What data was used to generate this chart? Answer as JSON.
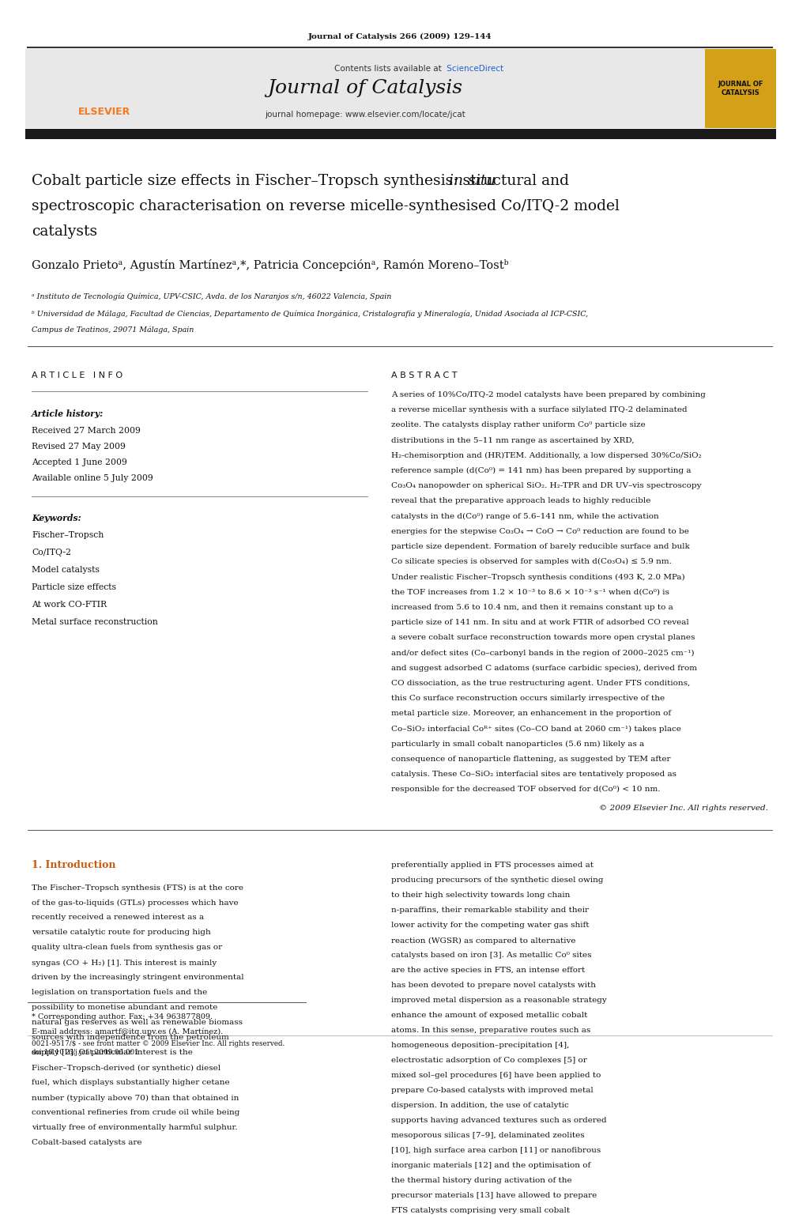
{
  "page_width": 9.92,
  "page_height": 13.23,
  "bg_color": "#ffffff",
  "journal_citation": "Journal of Catalysis 266 (2009) 129–144",
  "contents_text": "Contents lists available at",
  "sciencedirect_text": "ScienceDirect",
  "journal_name": "Journal of Catalysis",
  "homepage_text": "journal homepage: www.elsevier.com/locate/jcat",
  "journal_box_text": "JOURNAL OF\nCATALYSIS",
  "journal_box_color": "#d4a017",
  "header_bg_color": "#e8e8e8",
  "thick_bar_color": "#1a1a1a",
  "elsevier_color": "#f47920",
  "title_line1": "Cobalt particle size effects in Fischer–Tropsch synthesis: structural and in situ",
  "title_line2": "spectroscopic characterisation on reverse micelle-synthesised Co/ITQ-2 model",
  "title_line3": "catalysts",
  "authors": "Gonzalo Prietoᵃ, Agustín Martínezᵃ,*, Patricia Concepciónᵃ, Ramón Moreno–Tostᵇ",
  "affil_a": "ᵃ Instituto de Tecnología Química, UPV-CSIC, Avda. de los Naranjos s/n, 46022 Valencia, Spain",
  "affil_b": "ᵇ Universidad de Málaga, Facultad de Ciencias, Departamento de Química Inorgánica, Cristalografía y Mineralogía, Unidad Asociada al ICP-CSIC,",
  "affil_b2": "Campus de Teatinos, 29071 Málaga, Spain",
  "article_info_header": "ARTICLE INFO",
  "abstract_header": "ABSTRACT",
  "article_history_label": "Article history:",
  "received": "Received 27 March 2009",
  "revised": "Revised 27 May 2009",
  "accepted": "Accepted 1 June 2009",
  "available": "Available online 5 July 2009",
  "keywords_label": "Keywords:",
  "keywords": [
    "Fischer–Tropsch",
    "Co/ITQ-2",
    "Model catalysts",
    "Particle size effects",
    "At work CO-FTIR",
    "Metal surface reconstruction"
  ],
  "abstract_text": "A series of 10%Co/ITQ-2 model catalysts have been prepared by combining a reverse micellar synthesis with a surface silylated ITQ-2 delaminated zeolite. The catalysts display rather uniform Co⁰ particle size distributions in the 5–11 nm range as ascertained by XRD, H₂-chemisorption and (HR)TEM. Additionally, a low dispersed 30%Co/SiO₂ reference sample (d(Co⁰) = 141 nm) has been prepared by supporting a Co₃O₄ nanopowder on spherical SiO₂. H₂-TPR and DR UV–vis spectroscopy reveal that the preparative approach leads to highly reducible catalysts in the d(Co⁰) range of 5.6–141 nm, while the activation energies for the stepwise Co₃O₄ → CoO → Co⁰ reduction are found to be particle size dependent. Formation of barely reducible surface and bulk Co silicate species is observed for samples with d(Co₃O₄) ≤ 5.9 nm. Under realistic Fischer–Tropsch synthesis conditions (493 K, 2.0 MPa) the TOF increases from 1.2 × 10⁻³ to 8.6 × 10⁻³ s⁻¹ when d(Co⁰) is increased from 5.6 to 10.4 nm, and then it remains constant up to a particle size of 141 nm. In situ and at work FTIR of adsorbed CO reveal a severe cobalt surface reconstruction towards more open crystal planes and/or defect sites (Co–carbonyl bands in the region of 2000–2025 cm⁻¹) and suggest adsorbed C adatoms (surface carbidic species), derived from CO dissociation, as the true restructuring agent. Under FTS conditions, this Co surface reconstruction occurs similarly irrespective of the metal particle size. Moreover, an enhancement in the proportion of Co–SiO₂ interfacial Coᴿ⁺ sites (Co–CO band at 2060 cm⁻¹) takes place particularly in small cobalt nanoparticles (5.6 nm) likely as a consequence of nanoparticle flattening, as suggested by TEM after catalysis. These Co–SiO₂ interfacial sites are tentatively proposed as responsible for the decreased TOF observed for d(Co⁰) < 10 nm.",
  "copyright": "© 2009 Elsevier Inc. All rights reserved.",
  "intro_header": "1. Introduction",
  "intro_text1": "The Fischer–Tropsch synthesis (FTS) is at the core of the gas-to-liquids (GTLs) processes which have recently received a renewed interest as a versatile catalytic route for producing high quality ultra-clean fuels from synthesis gas or syngas (CO + H₂) [1]. This interest is mainly driven by the increasingly stringent environmental legislation on transportation fuels and the possibility to monetise abundant and remote natural gas reserves as well as renewable biomass sources with independence from the petroleum supply [2]. Of particular interest is the Fischer–Tropsch-derived (or synthetic) diesel fuel, which displays substantially higher cetane number (typically above 70) than that obtained in conventional refineries from crude oil while being virtually free of environmentally harmful sulphur. Cobalt-based catalysts are",
  "intro_text2": "preferentially applied in FTS processes aimed at producing precursors of the synthetic diesel owing to their high selectivity towards long chain n-paraffins, their remarkable stability and their lower activity for the competing water gas shift reaction (WGSR) as compared to alternative catalysts based on iron [3]. As metallic Co⁰ sites are the active species in FTS, an intense effort has been devoted to prepare novel catalysts with improved metal dispersion as a reasonable strategy enhance the amount of exposed metallic cobalt atoms. In this sense, preparative routes such as homogeneous deposition–precipitation [4], electrostatic adsorption of Co complexes [5] or mixed sol–gel procedures [6] have been applied to prepare Co-based catalysts with improved metal dispersion. In addition, the use of catalytic supports having advanced textures such as ordered mesoporous silicas [7–9], delaminated zeolites [10], high surface area carbon [11] or nanofibrous inorganic materials [12] and the optimisation of the thermal history during activation of the precursor materials [13] have allowed to prepare FTS catalysts comprising very small cobalt",
  "footnote_star": "* Corresponding author. Fax: +34 963877809.",
  "footnote_email": "E-mail address: amartf@itq.upv.es (A. Martínez).",
  "footer_issn": "0021-9517/$ - see front matter © 2009 Elsevier Inc. All rights reserved.",
  "footer_doi": "doi:10.1016/j.jcat.2009.06.001"
}
